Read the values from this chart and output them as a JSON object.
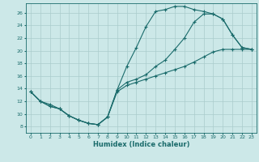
{
  "xlabel": "Humidex (Indice chaleur)",
  "xlim": [
    -0.5,
    23.5
  ],
  "ylim": [
    7,
    27.5
  ],
  "xticks": [
    0,
    1,
    2,
    3,
    4,
    5,
    6,
    7,
    8,
    9,
    10,
    11,
    12,
    13,
    14,
    15,
    16,
    17,
    18,
    19,
    20,
    21,
    22,
    23
  ],
  "yticks": [
    8,
    10,
    12,
    14,
    16,
    18,
    20,
    22,
    24,
    26
  ],
  "bg_color": "#cce8e8",
  "line_color": "#1a6b6b",
  "grid_color": "#aacccc",
  "line1_x": [
    0,
    1,
    2,
    3,
    4,
    5,
    6,
    7,
    8,
    9,
    10,
    11,
    12,
    13,
    14,
    15,
    16,
    17,
    18,
    19,
    20,
    21,
    22,
    23
  ],
  "line1_y": [
    13.5,
    12.0,
    11.5,
    10.8,
    9.7,
    9.0,
    8.5,
    8.3,
    9.5,
    13.5,
    14.5,
    15.0,
    15.5,
    16.0,
    16.5,
    17.0,
    17.5,
    18.2,
    19.0,
    19.8,
    20.2,
    20.2,
    20.2,
    20.2
  ],
  "line2_x": [
    0,
    1,
    2,
    3,
    4,
    5,
    6,
    7,
    8,
    9,
    10,
    11,
    12,
    13,
    14,
    15,
    16,
    17,
    18,
    19,
    20,
    21,
    22,
    23
  ],
  "line2_y": [
    13.5,
    12.0,
    11.2,
    10.8,
    9.7,
    9.0,
    8.5,
    8.3,
    9.5,
    13.8,
    17.5,
    20.5,
    23.8,
    26.2,
    26.5,
    27.0,
    27.0,
    26.5,
    26.2,
    25.8,
    25.0,
    22.5,
    20.5,
    20.2
  ],
  "line3_x": [
    0,
    1,
    2,
    3,
    4,
    5,
    6,
    7,
    8,
    9,
    10,
    11,
    12,
    13,
    14,
    15,
    16,
    17,
    18,
    19,
    20,
    21,
    22,
    23
  ],
  "line3_y": [
    13.5,
    12.0,
    11.2,
    10.8,
    9.7,
    9.0,
    8.5,
    8.3,
    9.5,
    13.8,
    15.0,
    15.5,
    16.2,
    17.5,
    18.5,
    20.2,
    22.0,
    24.5,
    25.8,
    25.8,
    25.0,
    22.5,
    20.5,
    20.2
  ]
}
